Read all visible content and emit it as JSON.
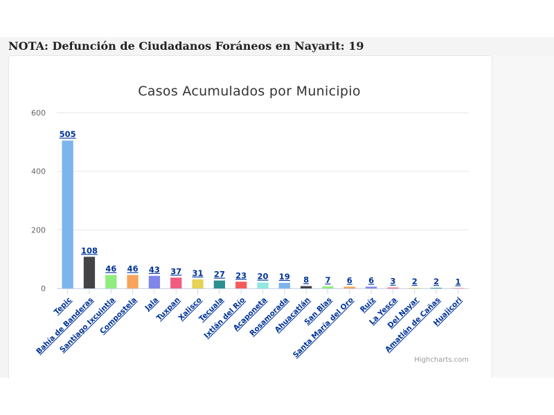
{
  "note": "NOTA: Defunción de Ciudadanos Foráneos en Nayarit: 19",
  "chart_data": {
    "type": "bar",
    "title": "Casos Acumulados por Municipio",
    "xlabel": "",
    "ylabel": "",
    "ylim": [
      0,
      600
    ],
    "yticks": [
      0,
      200,
      400,
      600
    ],
    "grid": true,
    "legend": "none",
    "categories": [
      "Tepic",
      "Bahía de Banderas",
      "Santiago Ixcuintla",
      "Compostela",
      "Jala",
      "Tuxpan",
      "Xalisco",
      "Tecuala",
      "Ixtlán del Río",
      "Acaponeta",
      "Rosamorada",
      "Ahuacatlán",
      "San Blas",
      "Santa María del Oro",
      "Ruíz",
      "La Yesca",
      "Del Nayar",
      "Amatlán de Cañas",
      "Huajicori"
    ],
    "values": [
      505,
      108,
      46,
      46,
      43,
      37,
      31,
      27,
      23,
      20,
      19,
      8,
      7,
      6,
      6,
      3,
      2,
      2,
      1
    ],
    "colors": [
      "#7cb5ec",
      "#434348",
      "#90ed7d",
      "#f7a35c",
      "#8085e9",
      "#f15c80",
      "#e4d354",
      "#2b908f",
      "#f45b5b",
      "#91e8e1",
      "#7cb5ec",
      "#434348",
      "#90ed7d",
      "#f7a35c",
      "#8085e9",
      "#f15c80",
      "#e4d354",
      "#2b908f",
      "#f45b5b"
    ],
    "credits": "Highcharts.com"
  }
}
